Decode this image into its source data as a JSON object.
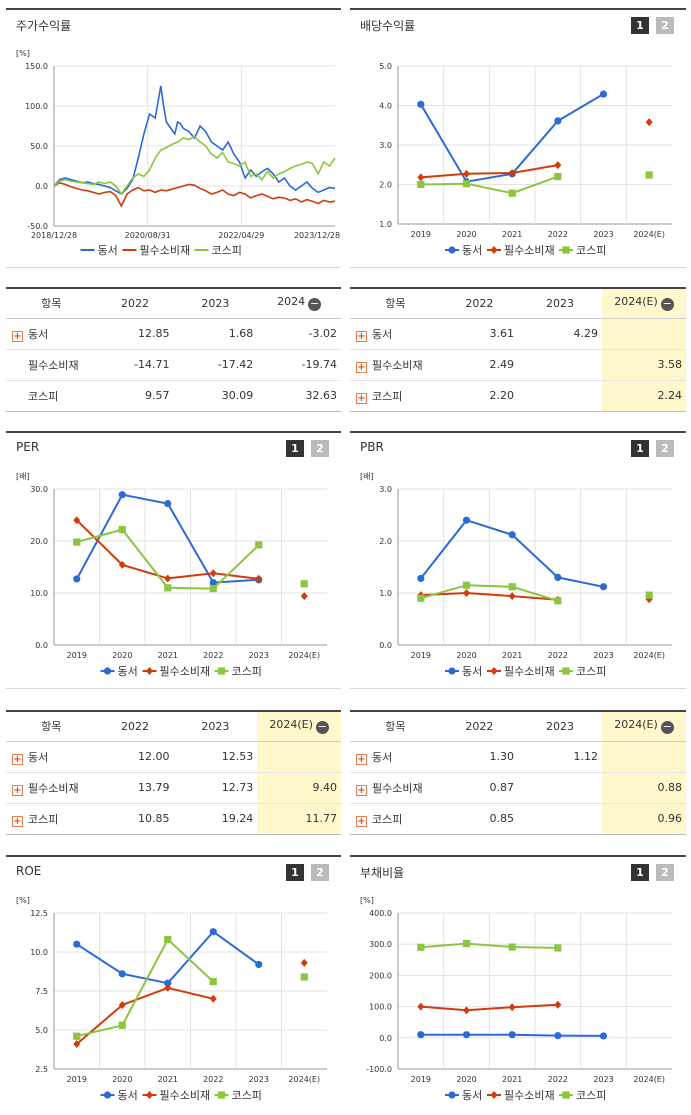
{
  "colors": {
    "dongseo": "#2d6ad6",
    "staples": "#d23c0c",
    "kospi": "#8cc63f",
    "grid": "#e3e3e3",
    "axis": "#999999",
    "highlight": "#fff8cc"
  },
  "legend": [
    "동서",
    "필수소비재",
    "코스피"
  ],
  "panels": {
    "stock_return": {
      "title": "주가수익률"
    },
    "dividend": {
      "title": "배당수익률",
      "btn1": "1",
      "btn2": "2"
    },
    "per": {
      "title": "PER",
      "btn1": "1",
      "btn2": "2"
    },
    "pbr": {
      "title": "PBR",
      "btn1": "1",
      "btn2": "2"
    },
    "roe": {
      "title": "ROE",
      "btn1": "1",
      "btn2": "2"
    },
    "debt": {
      "title": "부채비율",
      "btn1": "1",
      "btn2": "2"
    }
  },
  "tables": {
    "stock_return": {
      "headers": [
        "항목",
        "2022",
        "2023",
        "2024"
      ],
      "rows": [
        {
          "name": "동서",
          "expand": true,
          "values": [
            "12.85",
            "1.68",
            "-3.02"
          ]
        },
        {
          "name": "필수소비재",
          "expand": false,
          "values": [
            "-14.71",
            "-17.42",
            "-19.74"
          ]
        },
        {
          "name": "코스피",
          "expand": false,
          "values": [
            "9.57",
            "30.09",
            "32.63"
          ]
        }
      ]
    },
    "dividend": {
      "headers": [
        "항목",
        "2022",
        "2023",
        "2024(E)"
      ],
      "rows": [
        {
          "name": "동서",
          "expand": true,
          "values": [
            "3.61",
            "4.29",
            ""
          ]
        },
        {
          "name": "필수소비재",
          "expand": true,
          "values": [
            "2.49",
            "",
            "3.58"
          ]
        },
        {
          "name": "코스피",
          "expand": true,
          "values": [
            "2.20",
            "",
            "2.24"
          ]
        }
      ]
    },
    "per": {
      "headers": [
        "항목",
        "2022",
        "2023",
        "2024(E)"
      ],
      "rows": [
        {
          "name": "동서",
          "expand": true,
          "values": [
            "12.00",
            "12.53",
            ""
          ]
        },
        {
          "name": "필수소비재",
          "expand": true,
          "values": [
            "13.79",
            "12.73",
            "9.40"
          ]
        },
        {
          "name": "코스피",
          "expand": true,
          "values": [
            "10.85",
            "19.24",
            "11.77"
          ]
        }
      ]
    },
    "pbr": {
      "headers": [
        "항목",
        "2022",
        "2023",
        "2024(E)"
      ],
      "rows": [
        {
          "name": "동서",
          "expand": true,
          "values": [
            "1.30",
            "1.12",
            ""
          ]
        },
        {
          "name": "필수소비재",
          "expand": true,
          "values": [
            "0.87",
            "",
            "0.88"
          ]
        },
        {
          "name": "코스피",
          "expand": true,
          "values": [
            "0.85",
            "",
            "0.96"
          ]
        }
      ]
    }
  },
  "chart_data": [
    {
      "id": "stock_return",
      "type": "line",
      "title": "주가수익률",
      "ylabel": "[%]",
      "ylim": [
        -50,
        150
      ],
      "yticks": [
        "150.0",
        "100.0",
        "50.0",
        "0.0",
        "-50.0"
      ],
      "xticks": [
        "2018/12/28",
        "2020/08/31",
        "2022/04/29",
        "2023/12/28"
      ],
      "series": [
        {
          "name": "동서",
          "x": [
            0,
            0.02,
            0.04,
            0.06,
            0.08,
            0.1,
            0.12,
            0.14,
            0.16,
            0.18,
            0.2,
            0.22,
            0.24,
            0.26,
            0.28,
            0.3,
            0.32,
            0.34,
            0.36,
            0.37,
            0.38,
            0.39,
            0.4,
            0.41,
            0.42,
            0.43,
            0.44,
            0.45,
            0.46,
            0.48,
            0.5,
            0.52,
            0.54,
            0.56,
            0.58,
            0.6,
            0.62,
            0.64,
            0.66,
            0.68,
            0.7,
            0.72,
            0.74,
            0.76,
            0.78,
            0.8,
            0.82,
            0.84,
            0.86,
            0.88,
            0.9,
            0.92,
            0.94,
            0.96,
            0.98,
            1.0
          ],
          "y": [
            0,
            8,
            10,
            8,
            6,
            4,
            5,
            3,
            2,
            0,
            -2,
            -6,
            -10,
            -3,
            8,
            35,
            65,
            90,
            85,
            105,
            125,
            100,
            80,
            75,
            70,
            65,
            80,
            78,
            72,
            68,
            60,
            75,
            68,
            55,
            50,
            45,
            55,
            40,
            30,
            10,
            20,
            12,
            18,
            22,
            15,
            5,
            10,
            0,
            -5,
            0,
            5,
            -3,
            -8,
            -5,
            -2,
            -3
          ]
        },
        {
          "name": "필수소비재",
          "x": [
            0,
            0.02,
            0.04,
            0.06,
            0.08,
            0.1,
            0.12,
            0.14,
            0.16,
            0.18,
            0.2,
            0.22,
            0.24,
            0.26,
            0.28,
            0.3,
            0.32,
            0.34,
            0.36,
            0.38,
            0.4,
            0.42,
            0.44,
            0.46,
            0.48,
            0.5,
            0.52,
            0.54,
            0.56,
            0.58,
            0.6,
            0.62,
            0.64,
            0.66,
            0.68,
            0.7,
            0.72,
            0.74,
            0.76,
            0.78,
            0.8,
            0.82,
            0.84,
            0.86,
            0.88,
            0.9,
            0.92,
            0.94,
            0.96,
            0.98,
            1.0
          ],
          "y": [
            0,
            4,
            2,
            -1,
            -3,
            -5,
            -6,
            -8,
            -10,
            -8,
            -7,
            -12,
            -25,
            -10,
            -5,
            -2,
            -6,
            -5,
            -8,
            -5,
            -6,
            -4,
            -2,
            0,
            2,
            1,
            -3,
            -6,
            -10,
            -8,
            -5,
            -10,
            -12,
            -8,
            -10,
            -15,
            -12,
            -10,
            -13,
            -16,
            -14,
            -15,
            -18,
            -16,
            -20,
            -17,
            -19,
            -22,
            -18,
            -20,
            -19
          ]
        },
        {
          "name": "코스피",
          "x": [
            0,
            0.02,
            0.04,
            0.06,
            0.08,
            0.1,
            0.12,
            0.14,
            0.16,
            0.18,
            0.2,
            0.22,
            0.24,
            0.26,
            0.28,
            0.3,
            0.32,
            0.34,
            0.36,
            0.38,
            0.4,
            0.42,
            0.44,
            0.46,
            0.48,
            0.5,
            0.52,
            0.54,
            0.56,
            0.58,
            0.6,
            0.62,
            0.64,
            0.66,
            0.68,
            0.7,
            0.72,
            0.74,
            0.76,
            0.78,
            0.8,
            0.82,
            0.84,
            0.86,
            0.88,
            0.9,
            0.92,
            0.94,
            0.96,
            0.98,
            1.0
          ],
          "y": [
            0,
            6,
            8,
            6,
            5,
            4,
            3,
            2,
            5,
            3,
            5,
            0,
            -10,
            0,
            10,
            15,
            12,
            20,
            35,
            45,
            48,
            52,
            55,
            60,
            58,
            62,
            55,
            50,
            40,
            35,
            42,
            30,
            28,
            25,
            30,
            12,
            15,
            8,
            18,
            10,
            15,
            18,
            22,
            25,
            27,
            30,
            28,
            15,
            30,
            25,
            35
          ]
        }
      ]
    },
    {
      "id": "dividend",
      "type": "line",
      "title": "배당수익률",
      "ylim": [
        1.0,
        5.0
      ],
      "yticks": [
        "5.0",
        "4.0",
        "3.0",
        "2.0",
        "1.0"
      ],
      "categories": [
        "2019",
        "2020",
        "2021",
        "2022",
        "2023",
        "2024(E)"
      ],
      "series": [
        {
          "name": "동서",
          "values": [
            4.03,
            2.07,
            2.27,
            3.61,
            4.29,
            null
          ]
        },
        {
          "name": "필수소비재",
          "values": [
            2.18,
            2.27,
            2.29,
            2.49,
            null,
            3.58
          ]
        },
        {
          "name": "코스피",
          "values": [
            2.0,
            2.02,
            1.78,
            2.2,
            null,
            2.24
          ]
        }
      ]
    },
    {
      "id": "per",
      "type": "line",
      "title": "PER",
      "ylabel": "[배]",
      "ylim": [
        0,
        30
      ],
      "yticks": [
        "30.0",
        "20.0",
        "10.0",
        "0.0"
      ],
      "categories": [
        "2019",
        "2020",
        "2021",
        "2022",
        "2023",
        "2024(E)"
      ],
      "series": [
        {
          "name": "동서",
          "values": [
            12.7,
            28.9,
            27.2,
            12.0,
            12.53,
            null
          ]
        },
        {
          "name": "필수소비재",
          "values": [
            24.0,
            15.4,
            12.8,
            13.79,
            12.73,
            9.4
          ]
        },
        {
          "name": "코스피",
          "values": [
            19.8,
            22.2,
            11.0,
            10.85,
            19.24,
            11.77
          ]
        }
      ]
    },
    {
      "id": "pbr",
      "type": "line",
      "title": "PBR",
      "ylabel": "[배]",
      "ylim": [
        0,
        3
      ],
      "yticks": [
        "3.0",
        "2.0",
        "1.0",
        "0.0"
      ],
      "categories": [
        "2019",
        "2020",
        "2021",
        "2022",
        "2023",
        "2024(E)"
      ],
      "series": [
        {
          "name": "동서",
          "values": [
            1.28,
            2.4,
            2.12,
            1.3,
            1.12,
            null
          ]
        },
        {
          "name": "필수소비재",
          "values": [
            0.96,
            1.0,
            0.94,
            0.87,
            null,
            0.88
          ]
        },
        {
          "name": "코스피",
          "values": [
            0.9,
            1.15,
            1.12,
            0.85,
            null,
            0.96
          ]
        }
      ]
    },
    {
      "id": "roe",
      "type": "line",
      "title": "ROE",
      "ylabel": "[%]",
      "ylim": [
        2.5,
        12.5
      ],
      "yticks": [
        "12.5",
        "10.0",
        "7.5",
        "5.0",
        "2.5"
      ],
      "categories": [
        "2019",
        "2020",
        "2021",
        "2022",
        "2023",
        "2024(E)"
      ],
      "series": [
        {
          "name": "동서",
          "values": [
            10.5,
            8.6,
            8.0,
            11.3,
            9.2,
            null
          ]
        },
        {
          "name": "필수소비재",
          "values": [
            4.1,
            6.6,
            7.7,
            7.0,
            null,
            9.3
          ]
        },
        {
          "name": "코스피",
          "values": [
            4.6,
            5.3,
            10.8,
            8.1,
            null,
            8.4
          ]
        }
      ]
    },
    {
      "id": "debt",
      "type": "line",
      "title": "부채비율",
      "ylabel": "[%]",
      "ylim": [
        -100,
        400
      ],
      "yticks": [
        "400.0",
        "300.0",
        "200.0",
        "100.0",
        "0.0",
        "-100.0"
      ],
      "categories": [
        "2019",
        "2020",
        "2021",
        "2022",
        "2023",
        "2024(E)"
      ],
      "series": [
        {
          "name": "동서",
          "values": [
            10,
            10,
            10,
            7,
            6,
            null
          ]
        },
        {
          "name": "필수소비재",
          "values": [
            100,
            88,
            98,
            106,
            null,
            null
          ]
        },
        {
          "name": "코스피",
          "values": [
            290,
            302,
            291,
            288,
            null,
            null
          ]
        }
      ]
    }
  ]
}
